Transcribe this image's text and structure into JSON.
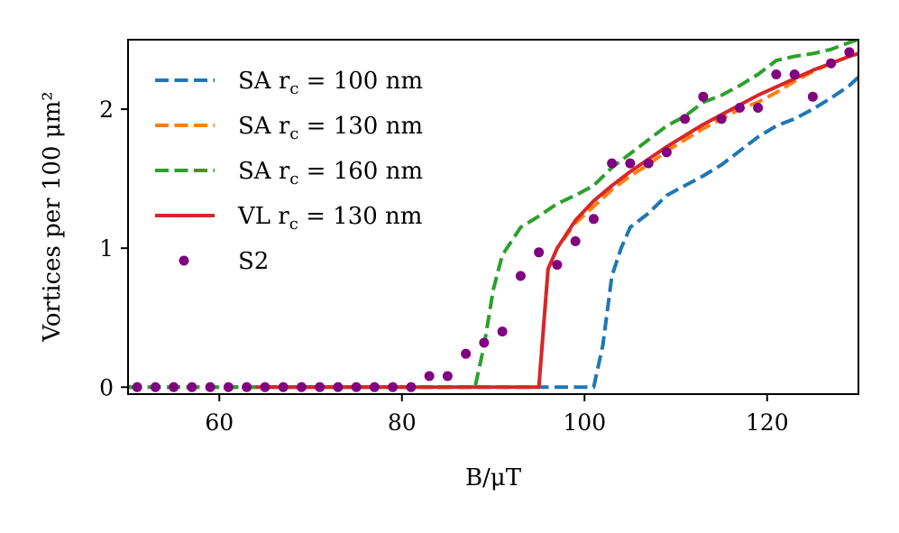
{
  "chart_data": {
    "type": "line",
    "title": "",
    "xlabel": "B/μT",
    "ylabel": "Vortices per 100 μm²",
    "xlim": [
      50,
      130
    ],
    "ylim": [
      -0.05,
      2.5
    ],
    "xticks": [
      60,
      80,
      100,
      120
    ],
    "yticks": [
      0,
      1,
      2
    ],
    "legend_position": "upper-left",
    "series": [
      {
        "name": "SA r_c = 100 nm",
        "label_main": "SA r",
        "label_sub": "c",
        "label_tail": " = 100 nm",
        "color": "#1f77b4",
        "style": "dashed",
        "x": [
          50,
          60,
          70,
          80,
          90,
          95,
          100,
          101,
          102,
          103,
          104,
          105,
          107,
          109,
          111,
          113,
          115,
          117,
          119,
          121,
          123,
          125,
          127,
          129,
          130
        ],
        "y": [
          0,
          0,
          0,
          0,
          0,
          0,
          0,
          0,
          0.3,
          0.8,
          1.0,
          1.15,
          1.25,
          1.38,
          1.45,
          1.52,
          1.6,
          1.7,
          1.8,
          1.88,
          1.93,
          2.0,
          2.08,
          2.17,
          2.23
        ]
      },
      {
        "name": "SA r_c = 130 nm",
        "label_main": "SA r",
        "label_sub": "c",
        "label_tail": " = 130 nm",
        "color": "#ff7f0e",
        "style": "dashed",
        "x": [
          50,
          60,
          70,
          80,
          90,
          95,
          96,
          97,
          99,
          101,
          103,
          105,
          107,
          109,
          111,
          113,
          115,
          117,
          119,
          121,
          123,
          125,
          127,
          129,
          130
        ],
        "y": [
          0,
          0,
          0,
          0,
          0,
          0,
          0.85,
          1.0,
          1.18,
          1.3,
          1.42,
          1.52,
          1.6,
          1.7,
          1.78,
          1.86,
          1.93,
          2.0,
          2.05,
          2.12,
          2.2,
          2.27,
          2.33,
          2.38,
          2.4
        ]
      },
      {
        "name": "SA r_c = 160 nm",
        "label_main": "SA r",
        "label_sub": "c",
        "label_tail": " = 160 nm",
        "color": "#2ca02c",
        "style": "dashed",
        "x": [
          50,
          60,
          70,
          80,
          88,
          89,
          90,
          91,
          93,
          95,
          97,
          99,
          101,
          103,
          105,
          107,
          109,
          111,
          113,
          115,
          117,
          119,
          121,
          123,
          125,
          127,
          129,
          130
        ],
        "y": [
          0,
          0,
          0,
          0,
          0,
          0.3,
          0.7,
          0.95,
          1.15,
          1.23,
          1.32,
          1.38,
          1.45,
          1.58,
          1.68,
          1.78,
          1.88,
          1.95,
          2.05,
          2.1,
          2.17,
          2.25,
          2.35,
          2.38,
          2.4,
          2.43,
          2.48,
          2.5
        ]
      },
      {
        "name": "VL r_c = 130 nm",
        "label_main": "VL r",
        "label_sub": "c",
        "label_tail": " = 130 nm",
        "color": "#d62728",
        "style": "solid",
        "x": [
          64,
          70,
          80,
          90,
          95,
          96,
          97,
          98,
          99,
          101,
          103,
          105,
          107,
          109,
          111,
          113,
          115,
          117,
          119,
          121,
          123,
          125,
          127,
          129,
          130
        ],
        "y": [
          0,
          0,
          0,
          0,
          0,
          0.85,
          1.0,
          1.1,
          1.2,
          1.34,
          1.45,
          1.55,
          1.64,
          1.73,
          1.81,
          1.89,
          1.96,
          2.03,
          2.1,
          2.16,
          2.22,
          2.28,
          2.33,
          2.38,
          2.4
        ]
      },
      {
        "name": "S2",
        "label_main": "S2",
        "label_sub": "",
        "label_tail": "",
        "color": "#800080",
        "style": "markers",
        "x": [
          51,
          53,
          55,
          57,
          59,
          61,
          63,
          65,
          67,
          69,
          71,
          73,
          75,
          77,
          79,
          81,
          83,
          85,
          87,
          89,
          91,
          93,
          95,
          97,
          99,
          101,
          103,
          105,
          107,
          109,
          111,
          113,
          115,
          117,
          119,
          121,
          123,
          125,
          127,
          129
        ],
        "y": [
          0,
          0,
          0,
          0,
          0,
          0,
          0,
          0,
          0,
          0,
          0,
          0,
          0,
          0,
          0,
          0,
          0.08,
          0.08,
          0.24,
          0.32,
          0.4,
          0.8,
          0.97,
          0.88,
          1.05,
          1.21,
          1.61,
          1.61,
          1.61,
          1.69,
          1.93,
          2.09,
          1.93,
          2.01,
          2.01,
          2.25,
          2.25,
          2.09,
          2.33,
          2.41
        ]
      }
    ]
  }
}
